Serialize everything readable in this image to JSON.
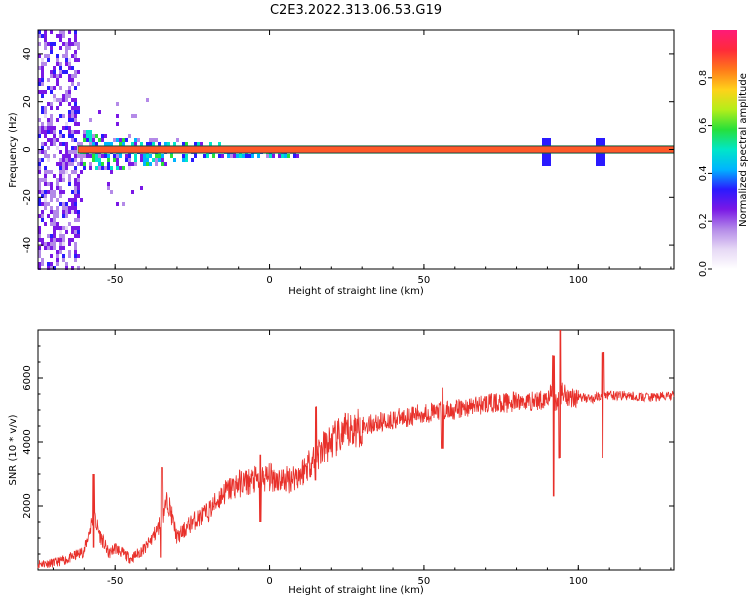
{
  "title": "C2E3.2022.313.06.53.G19",
  "colors": {
    "snr_line": "#e8302a",
    "signal_band_edge": "#0a6b3a",
    "colormap": [
      "#ffffff",
      "#e6d8f5",
      "#b48ae8",
      "#7a18e6",
      "#2a1aff",
      "#00b4ff",
      "#00e6c8",
      "#27e03a",
      "#b4ee1a",
      "#ffd21a",
      "#ff7a1a",
      "#ff2a3a",
      "#ff1a78"
    ]
  },
  "chart_data": [
    {
      "type": "heatmap",
      "name": "spectrogram",
      "xlabel": "Height of straight line (km)",
      "ylabel": "Frequency (Hz)",
      "xlim": [
        -75,
        131
      ],
      "ylim": [
        -50,
        50
      ],
      "xticks": [
        -50,
        0,
        50,
        100
      ],
      "xtick_labels": [
        "-50",
        "0",
        "50",
        "100"
      ],
      "yticks": [
        -40,
        -20,
        0,
        20,
        40
      ],
      "ytick_labels": [
        "-40",
        "-20",
        "0",
        "20",
        "40"
      ],
      "signal_band": {
        "frequency_hz": 0,
        "half_width_hz": 1.5,
        "amplitude": 0.95
      },
      "noise_onset_height_km": -62,
      "colorbar": {
        "label": "Normalized spectral amplitude",
        "range": [
          0,
          1
        ],
        "ticks": [
          0.0,
          0.2,
          0.4,
          0.6,
          0.8
        ],
        "tick_labels": [
          "0.0",
          "0.2",
          "0.4",
          "0.6",
          "0.8"
        ]
      }
    },
    {
      "type": "line",
      "name": "snr",
      "xlabel": "Height of straight line (km)",
      "ylabel": "SNR (10 * v/v)",
      "xlim": [
        -75,
        131
      ],
      "ylim": [
        0,
        7500
      ],
      "xticks": [
        -50,
        0,
        50,
        100
      ],
      "xtick_labels": [
        "-50",
        "0",
        "50",
        "100"
      ],
      "yticks": [
        2000,
        4000,
        6000
      ],
      "ytick_labels": [
        "2000",
        "4000",
        "6000"
      ],
      "x": [
        -75,
        -70,
        -65,
        -60,
        -57,
        -55,
        -52,
        -50,
        -45,
        -40,
        -36,
        -33,
        -30,
        -25,
        -20,
        -15,
        -10,
        -5,
        0,
        5,
        10,
        15,
        20,
        25,
        30,
        40,
        50,
        60,
        70,
        80,
        88,
        91,
        93,
        95,
        97,
        100,
        105,
        108,
        110,
        115,
        120,
        125,
        131
      ],
      "y": [
        200,
        220,
        350,
        600,
        1700,
        1100,
        500,
        700,
        350,
        700,
        1300,
        2200,
        1000,
        1500,
        1800,
        2400,
        2700,
        2800,
        2900,
        2800,
        3000,
        3600,
        4000,
        4300,
        4500,
        4700,
        4900,
        5000,
        5200,
        5250,
        5300,
        5500,
        5200,
        5600,
        5400,
        5400,
        5350,
        5500,
        5450,
        5450,
        5400,
        5400,
        5450
      ],
      "spikes": [
        {
          "x": -57,
          "min": 700,
          "max": 3000
        },
        {
          "x": -35,
          "min": 400,
          "max": 3200
        },
        {
          "x": -3,
          "min": 1500,
          "max": 3600
        },
        {
          "x": 15,
          "min": 2800,
          "max": 5100
        },
        {
          "x": 56,
          "min": 3800,
          "max": 5700
        },
        {
          "x": 92,
          "min": 2300,
          "max": 6700
        },
        {
          "x": 94,
          "min": 3500,
          "max": 7500
        },
        {
          "x": 108,
          "min": 3500,
          "max": 6800
        }
      ]
    }
  ]
}
